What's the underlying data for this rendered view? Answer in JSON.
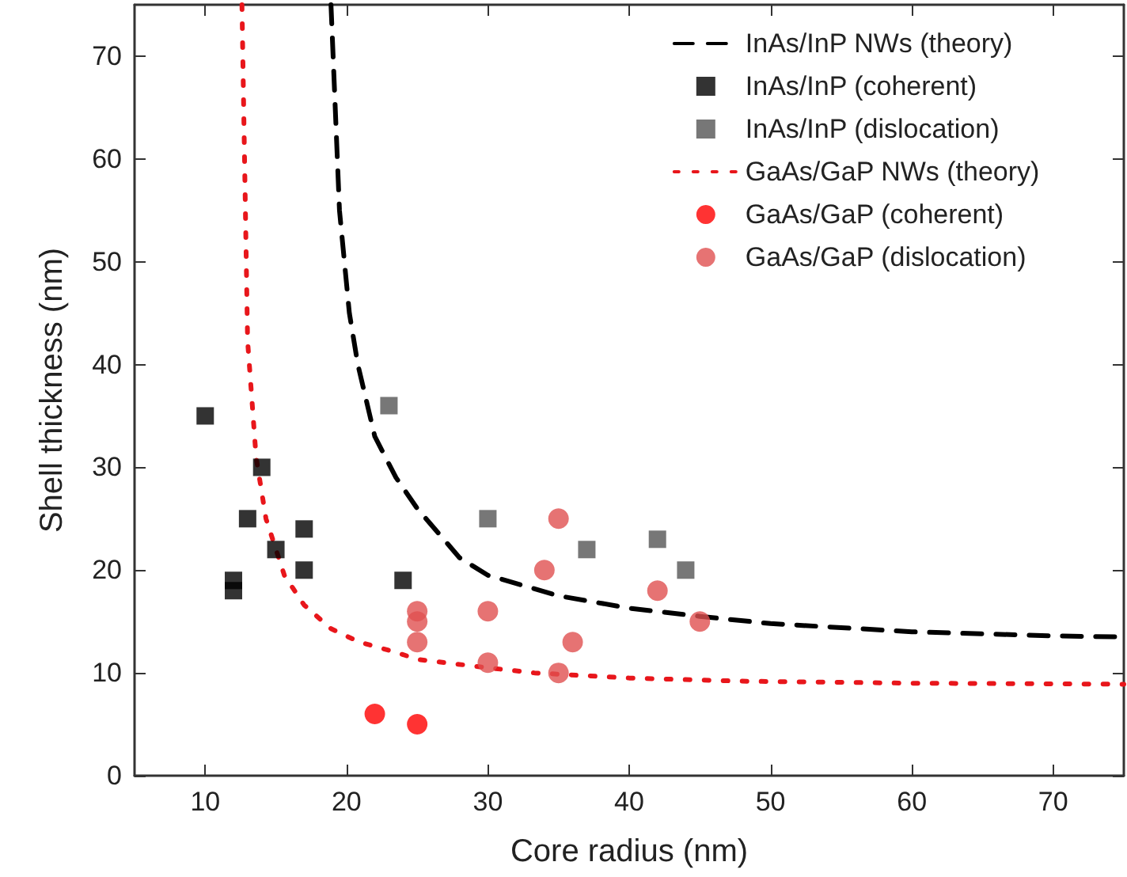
{
  "chart_data": {
    "type": "scatter",
    "xlabel": "Core radius (nm)",
    "ylabel": "Shell thickness (nm)",
    "xlim": [
      5,
      75
    ],
    "xticks": [
      10,
      20,
      30,
      40,
      50,
      60,
      70
    ],
    "ylim": [
      0,
      75
    ],
    "yticks": [
      0,
      10,
      20,
      30,
      40,
      50,
      60,
      70
    ],
    "grid": false,
    "legend": "top right",
    "series": [
      {
        "name": "InAs/InP NWs (theory)",
        "type": "line",
        "color": "#000000",
        "line_style": "dashed",
        "marker": "none",
        "x": [
          18.9,
          19.5,
          20.2,
          20.8,
          22,
          23.5,
          25,
          28,
          30,
          35,
          40,
          45,
          50,
          55,
          60,
          65,
          70,
          75
        ],
        "values": [
          75,
          55,
          45,
          40,
          33,
          29,
          26,
          21.2,
          19.5,
          17.5,
          16.3,
          15.5,
          14.8,
          14.4,
          14,
          13.8,
          13.6,
          13.5
        ]
      },
      {
        "name": "InAs/InP (coherent)",
        "color": "#000000",
        "marker": "square",
        "x": [
          10,
          12,
          12,
          13,
          14,
          15,
          17,
          17,
          24
        ],
        "values": [
          35,
          18,
          19,
          25,
          30,
          22,
          24,
          20,
          19
        ]
      },
      {
        "name": "InAs/InP (dislocation)",
        "color": "#555555",
        "marker": "square",
        "x": [
          23,
          30,
          37,
          42,
          44
        ],
        "values": [
          36,
          25,
          22,
          23,
          20
        ]
      },
      {
        "name": "GaAs/GaP NWs (theory)",
        "type": "line",
        "color": "#e8161b",
        "line_style": "dotted",
        "marker": "none",
        "x": [
          12.6,
          13,
          13.6,
          14.3,
          15.6,
          17,
          18.9,
          20.9,
          23,
          25.1,
          30,
          33.3,
          40,
          47.8,
          60,
          75
        ],
        "values": [
          75,
          42.3,
          31,
          25,
          19.5,
          16.6,
          14.3,
          13,
          12.2,
          11.3,
          10.5,
          10,
          9.5,
          9.2,
          9,
          8.9
        ]
      },
      {
        "name": "GaAs/GaP (coherent)",
        "color": "#ff0000",
        "marker": "circle",
        "x": [
          22,
          25
        ],
        "values": [
          6,
          5
        ]
      },
      {
        "name": "GaAs/GaP (dislocation)",
        "color": "#e05050",
        "marker": "circle",
        "x": [
          25,
          25,
          25,
          30,
          30,
          34,
          35,
          35,
          36,
          42,
          45
        ],
        "values": [
          16,
          15,
          13,
          16,
          11,
          20,
          25,
          10,
          13,
          18,
          15
        ]
      }
    ]
  }
}
